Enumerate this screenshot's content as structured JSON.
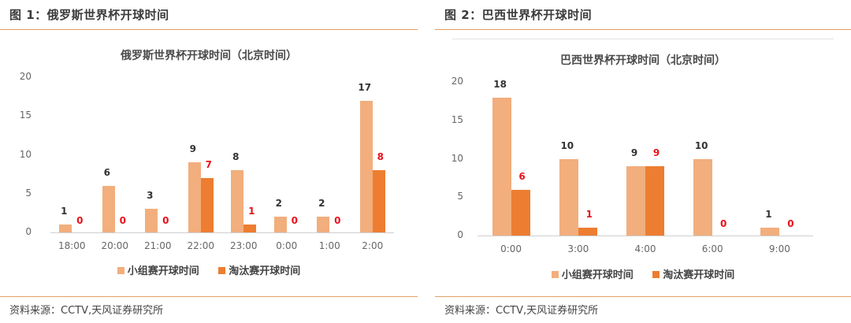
{
  "figures": [
    {
      "fig_title": "图 1：俄罗斯世界杯开球时间",
      "source": "资料来源：CCTV,天风证券研究所",
      "legend": [
        "小组赛开球时间",
        "淘汰赛开球时间"
      ]
    },
    {
      "fig_title": "图 2：巴西世界杯开球时间",
      "source": "资料来源：CCTV,天风证券研究所",
      "legend": [
        "小组赛开球时间",
        "淘汰赛开球时间"
      ]
    }
  ],
  "colors": {
    "group": "#f2ae7d",
    "knockout": "#ed7d31",
    "knockout_label": "#e8121c",
    "rule": "#e3a063"
  },
  "chart_data": [
    {
      "type": "bar",
      "title": "俄罗斯世界杯开球时间（北京时间）",
      "categories": [
        "18:00",
        "20:00",
        "21:00",
        "22:00",
        "23:00",
        "0:00",
        "1:00",
        "2:00"
      ],
      "series": [
        {
          "name": "小组赛开球时间",
          "values": [
            1,
            6,
            3,
            9,
            8,
            2,
            2,
            17
          ]
        },
        {
          "name": "淘汰赛开球时间",
          "values": [
            0,
            0,
            0,
            7,
            1,
            0,
            0,
            8
          ]
        }
      ],
      "yticks": [
        "0",
        "5",
        "10",
        "15",
        "20"
      ],
      "ylim": [
        0,
        20
      ],
      "xlabel": "",
      "ylabel": "",
      "grid": false,
      "legend_position": "bottom"
    },
    {
      "type": "bar",
      "title": "巴西世界杯开球时间（北京时间）",
      "categories": [
        "0:00",
        "3:00",
        "4:00",
        "6:00",
        "9:00"
      ],
      "series": [
        {
          "name": "小组赛开球时间",
          "values": [
            18,
            10,
            9,
            10,
            1
          ]
        },
        {
          "name": "淘汰赛开球时间",
          "values": [
            6,
            1,
            9,
            0,
            0
          ]
        }
      ],
      "yticks": [
        "0",
        "5",
        "10",
        "15",
        "20"
      ],
      "ylim": [
        0,
        20
      ],
      "xlabel": "",
      "ylabel": "",
      "grid": false,
      "legend_position": "bottom"
    }
  ]
}
